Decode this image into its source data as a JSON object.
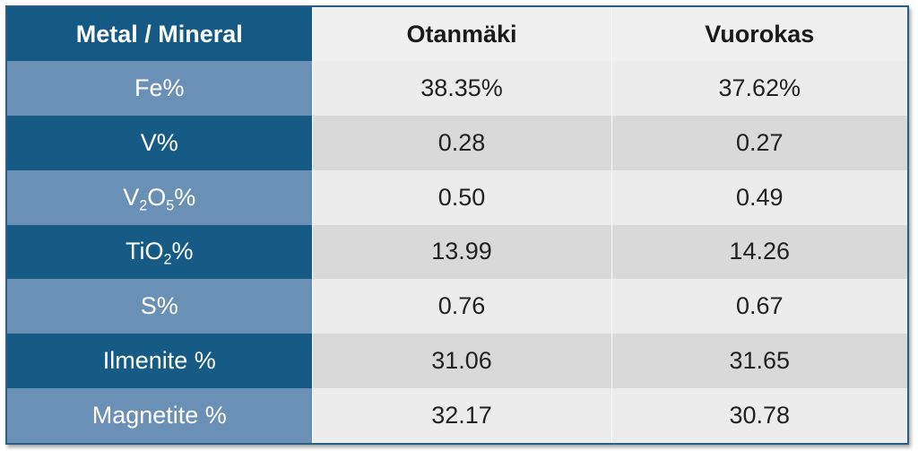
{
  "table": {
    "headers": [
      "Metal / Mineral",
      "Otanmäki",
      "Vuorokas"
    ],
    "rows": [
      {
        "label_html": "Fe%",
        "values": [
          "38.35%",
          "37.62%"
        ]
      },
      {
        "label_html": "V%",
        "values": [
          "0.28",
          "0.27"
        ]
      },
      {
        "label_html": "V<sub>2</sub>O<sub>5</sub>%",
        "values": [
          "0.50",
          "0.49"
        ]
      },
      {
        "label_html": "TiO<sub>2</sub>%",
        "values": [
          "13.99",
          "14.26"
        ]
      },
      {
        "label_html": "S%",
        "values": [
          "0.76",
          "0.67"
        ]
      },
      {
        "label_html": "Ilmenite %",
        "values": [
          "31.06",
          "31.65"
        ]
      },
      {
        "label_html": "Magnetite %",
        "values": [
          "32.17",
          "30.78"
        ]
      }
    ]
  },
  "colors": {
    "header_accent": "#145a85",
    "row_label_light": "#6a90b6",
    "row_label_dark": "#155b86",
    "cell_light": "#ececec",
    "cell_dark": "#d9d9d9"
  }
}
